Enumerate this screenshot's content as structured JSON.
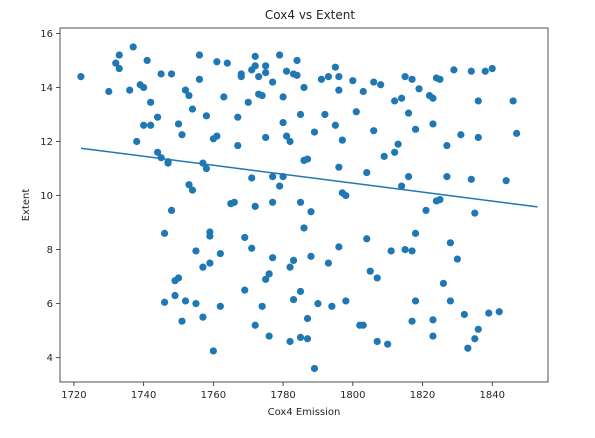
{
  "chart_data": {
    "type": "scatter",
    "title": "Cox4 vs Extent",
    "xlabel": "Cox4 Emission",
    "ylabel": "Extent",
    "xlim": [
      1716,
      1856
    ],
    "ylim": [
      3.1,
      16.2
    ],
    "xticks": [
      "1720",
      "1740",
      "1760",
      "1780",
      "1800",
      "1820",
      "1840"
    ],
    "yticks": [
      "4",
      "6",
      "8",
      "10",
      "12",
      "14",
      "16"
    ],
    "grid": false,
    "color": "#1f77b4",
    "trendline": {
      "x": [
        1722,
        1853
      ],
      "y": [
        11.75,
        9.58
      ]
    },
    "points": [
      {
        "x": 1722,
        "y": 14.4
      },
      {
        "x": 1730,
        "y": 13.85
      },
      {
        "x": 1732,
        "y": 14.9
      },
      {
        "x": 1733,
        "y": 15.2
      },
      {
        "x": 1733,
        "y": 14.7
      },
      {
        "x": 1736,
        "y": 13.9
      },
      {
        "x": 1737,
        "y": 15.5
      },
      {
        "x": 1738,
        "y": 12.0
      },
      {
        "x": 1739,
        "y": 14.1
      },
      {
        "x": 1740,
        "y": 12.6
      },
      {
        "x": 1740,
        "y": 14.0
      },
      {
        "x": 1741,
        "y": 15.0
      },
      {
        "x": 1742,
        "y": 13.45
      },
      {
        "x": 1742,
        "y": 12.6
      },
      {
        "x": 1744,
        "y": 12.9
      },
      {
        "x": 1744,
        "y": 11.6
      },
      {
        "x": 1745,
        "y": 11.4
      },
      {
        "x": 1745,
        "y": 14.5
      },
      {
        "x": 1746,
        "y": 8.6
      },
      {
        "x": 1746,
        "y": 6.05
      },
      {
        "x": 1747,
        "y": 11.2
      },
      {
        "x": 1747,
        "y": 11.25
      },
      {
        "x": 1748,
        "y": 9.45
      },
      {
        "x": 1748,
        "y": 14.5
      },
      {
        "x": 1749,
        "y": 6.3
      },
      {
        "x": 1749,
        "y": 6.85
      },
      {
        "x": 1750,
        "y": 6.95
      },
      {
        "x": 1750,
        "y": 12.65
      },
      {
        "x": 1751,
        "y": 5.35
      },
      {
        "x": 1751,
        "y": 12.25
      },
      {
        "x": 1752,
        "y": 6.1
      },
      {
        "x": 1752,
        "y": 13.9
      },
      {
        "x": 1753,
        "y": 10.4
      },
      {
        "x": 1753,
        "y": 13.7
      },
      {
        "x": 1754,
        "y": 10.2
      },
      {
        "x": 1754,
        "y": 13.2
      },
      {
        "x": 1755,
        "y": 7.95
      },
      {
        "x": 1755,
        "y": 6.0
      },
      {
        "x": 1756,
        "y": 15.2
      },
      {
        "x": 1756,
        "y": 14.3
      },
      {
        "x": 1757,
        "y": 7.35
      },
      {
        "x": 1757,
        "y": 11.2
      },
      {
        "x": 1757,
        "y": 5.5
      },
      {
        "x": 1758,
        "y": 12.95
      },
      {
        "x": 1758,
        "y": 11.0
      },
      {
        "x": 1759,
        "y": 8.65
      },
      {
        "x": 1759,
        "y": 8.5
      },
      {
        "x": 1759,
        "y": 7.5
      },
      {
        "x": 1760,
        "y": 12.1
      },
      {
        "x": 1760,
        "y": 4.25
      },
      {
        "x": 1761,
        "y": 14.95
      },
      {
        "x": 1761,
        "y": 12.2
      },
      {
        "x": 1762,
        "y": 5.9
      },
      {
        "x": 1762,
        "y": 7.85
      },
      {
        "x": 1763,
        "y": 13.65
      },
      {
        "x": 1764,
        "y": 14.9
      },
      {
        "x": 1765,
        "y": 9.7
      },
      {
        "x": 1766,
        "y": 9.75
      },
      {
        "x": 1767,
        "y": 11.85
      },
      {
        "x": 1767,
        "y": 12.9
      },
      {
        "x": 1768,
        "y": 14.5
      },
      {
        "x": 1768,
        "y": 14.4
      },
      {
        "x": 1769,
        "y": 6.5
      },
      {
        "x": 1769,
        "y": 8.45
      },
      {
        "x": 1770,
        "y": 13.45
      },
      {
        "x": 1771,
        "y": 14.65
      },
      {
        "x": 1771,
        "y": 10.65
      },
      {
        "x": 1771,
        "y": 8.05
      },
      {
        "x": 1772,
        "y": 14.8
      },
      {
        "x": 1772,
        "y": 15.15
      },
      {
        "x": 1772,
        "y": 5.2
      },
      {
        "x": 1772,
        "y": 9.6
      },
      {
        "x": 1773,
        "y": 13.75
      },
      {
        "x": 1773,
        "y": 14.4
      },
      {
        "x": 1774,
        "y": 5.9
      },
      {
        "x": 1774,
        "y": 13.7
      },
      {
        "x": 1775,
        "y": 12.15
      },
      {
        "x": 1775,
        "y": 14.55
      },
      {
        "x": 1775,
        "y": 14.8
      },
      {
        "x": 1775,
        "y": 6.9
      },
      {
        "x": 1776,
        "y": 7.1
      },
      {
        "x": 1776,
        "y": 4.8
      },
      {
        "x": 1777,
        "y": 10.7
      },
      {
        "x": 1777,
        "y": 9.75
      },
      {
        "x": 1777,
        "y": 14.2
      },
      {
        "x": 1777,
        "y": 7.7
      },
      {
        "x": 1779,
        "y": 15.2
      },
      {
        "x": 1779,
        "y": 10.35
      },
      {
        "x": 1780,
        "y": 10.7
      },
      {
        "x": 1780,
        "y": 13.65
      },
      {
        "x": 1780,
        "y": 12.7
      },
      {
        "x": 1781,
        "y": 14.6
      },
      {
        "x": 1781,
        "y": 12.2
      },
      {
        "x": 1782,
        "y": 4.6
      },
      {
        "x": 1782,
        "y": 7.35
      },
      {
        "x": 1782,
        "y": 12.0
      },
      {
        "x": 1783,
        "y": 14.5
      },
      {
        "x": 1783,
        "y": 6.15
      },
      {
        "x": 1783,
        "y": 7.6
      },
      {
        "x": 1784,
        "y": 14.45
      },
      {
        "x": 1784,
        "y": 15.0
      },
      {
        "x": 1785,
        "y": 9.75
      },
      {
        "x": 1785,
        "y": 6.45
      },
      {
        "x": 1785,
        "y": 4.75
      },
      {
        "x": 1785,
        "y": 13.0
      },
      {
        "x": 1786,
        "y": 11.3
      },
      {
        "x": 1786,
        "y": 8.8
      },
      {
        "x": 1786,
        "y": 14.0
      },
      {
        "x": 1787,
        "y": 4.7
      },
      {
        "x": 1787,
        "y": 5.45
      },
      {
        "x": 1787,
        "y": 11.35
      },
      {
        "x": 1788,
        "y": 7.75
      },
      {
        "x": 1788,
        "y": 9.4
      },
      {
        "x": 1789,
        "y": 3.6
      },
      {
        "x": 1789,
        "y": 12.35
      },
      {
        "x": 1790,
        "y": 6.0
      },
      {
        "x": 1791,
        "y": 14.3
      },
      {
        "x": 1792,
        "y": 13.0
      },
      {
        "x": 1793,
        "y": 7.5
      },
      {
        "x": 1793,
        "y": 14.4
      },
      {
        "x": 1794,
        "y": 5.9
      },
      {
        "x": 1795,
        "y": 14.75
      },
      {
        "x": 1795,
        "y": 12.6
      },
      {
        "x": 1796,
        "y": 14.4
      },
      {
        "x": 1796,
        "y": 8.1
      },
      {
        "x": 1796,
        "y": 11.05
      },
      {
        "x": 1796,
        "y": 13.9
      },
      {
        "x": 1797,
        "y": 10.1
      },
      {
        "x": 1797,
        "y": 12.05
      },
      {
        "x": 1798,
        "y": 6.1
      },
      {
        "x": 1798,
        "y": 10.0
      },
      {
        "x": 1800,
        "y": 14.25
      },
      {
        "x": 1801,
        "y": 13.1
      },
      {
        "x": 1802,
        "y": 5.2
      },
      {
        "x": 1803,
        "y": 5.2
      },
      {
        "x": 1803,
        "y": 13.85
      },
      {
        "x": 1804,
        "y": 8.4
      },
      {
        "x": 1804,
        "y": 10.85
      },
      {
        "x": 1805,
        "y": 7.2
      },
      {
        "x": 1806,
        "y": 14.2
      },
      {
        "x": 1806,
        "y": 12.4
      },
      {
        "x": 1807,
        "y": 4.6
      },
      {
        "x": 1807,
        "y": 6.95
      },
      {
        "x": 1808,
        "y": 14.1
      },
      {
        "x": 1809,
        "y": 11.45
      },
      {
        "x": 1810,
        "y": 4.5
      },
      {
        "x": 1811,
        "y": 7.95
      },
      {
        "x": 1812,
        "y": 13.5
      },
      {
        "x": 1812,
        "y": 11.6
      },
      {
        "x": 1813,
        "y": 11.9
      },
      {
        "x": 1814,
        "y": 13.6
      },
      {
        "x": 1814,
        "y": 10.35
      },
      {
        "x": 1815,
        "y": 14.4
      },
      {
        "x": 1815,
        "y": 8.0
      },
      {
        "x": 1816,
        "y": 10.7
      },
      {
        "x": 1816,
        "y": 13.05
      },
      {
        "x": 1817,
        "y": 5.35
      },
      {
        "x": 1817,
        "y": 14.3
      },
      {
        "x": 1817,
        "y": 7.95
      },
      {
        "x": 1818,
        "y": 8.6
      },
      {
        "x": 1818,
        "y": 12.45
      },
      {
        "x": 1818,
        "y": 6.1
      },
      {
        "x": 1819,
        "y": 13.95
      },
      {
        "x": 1821,
        "y": 9.45
      },
      {
        "x": 1822,
        "y": 13.7
      },
      {
        "x": 1823,
        "y": 5.4
      },
      {
        "x": 1823,
        "y": 13.6
      },
      {
        "x": 1823,
        "y": 12.65
      },
      {
        "x": 1823,
        "y": 4.8
      },
      {
        "x": 1824,
        "y": 9.8
      },
      {
        "x": 1824,
        "y": 14.35
      },
      {
        "x": 1825,
        "y": 14.3
      },
      {
        "x": 1825,
        "y": 9.85
      },
      {
        "x": 1826,
        "y": 6.75
      },
      {
        "x": 1827,
        "y": 10.7
      },
      {
        "x": 1827,
        "y": 11.85
      },
      {
        "x": 1828,
        "y": 8.25
      },
      {
        "x": 1828,
        "y": 6.1
      },
      {
        "x": 1829,
        "y": 14.65
      },
      {
        "x": 1830,
        "y": 7.65
      },
      {
        "x": 1831,
        "y": 12.25
      },
      {
        "x": 1832,
        "y": 5.6
      },
      {
        "x": 1833,
        "y": 4.35
      },
      {
        "x": 1834,
        "y": 14.6
      },
      {
        "x": 1834,
        "y": 10.6
      },
      {
        "x": 1835,
        "y": 4.7
      },
      {
        "x": 1835,
        "y": 9.35
      },
      {
        "x": 1836,
        "y": 12.15
      },
      {
        "x": 1836,
        "y": 5.05
      },
      {
        "x": 1836,
        "y": 13.5
      },
      {
        "x": 1838,
        "y": 14.6
      },
      {
        "x": 1839,
        "y": 5.65
      },
      {
        "x": 1840,
        "y": 14.7
      },
      {
        "x": 1842,
        "y": 5.7
      },
      {
        "x": 1844,
        "y": 10.55
      },
      {
        "x": 1846,
        "y": 13.5
      },
      {
        "x": 1847,
        "y": 12.3
      }
    ]
  }
}
